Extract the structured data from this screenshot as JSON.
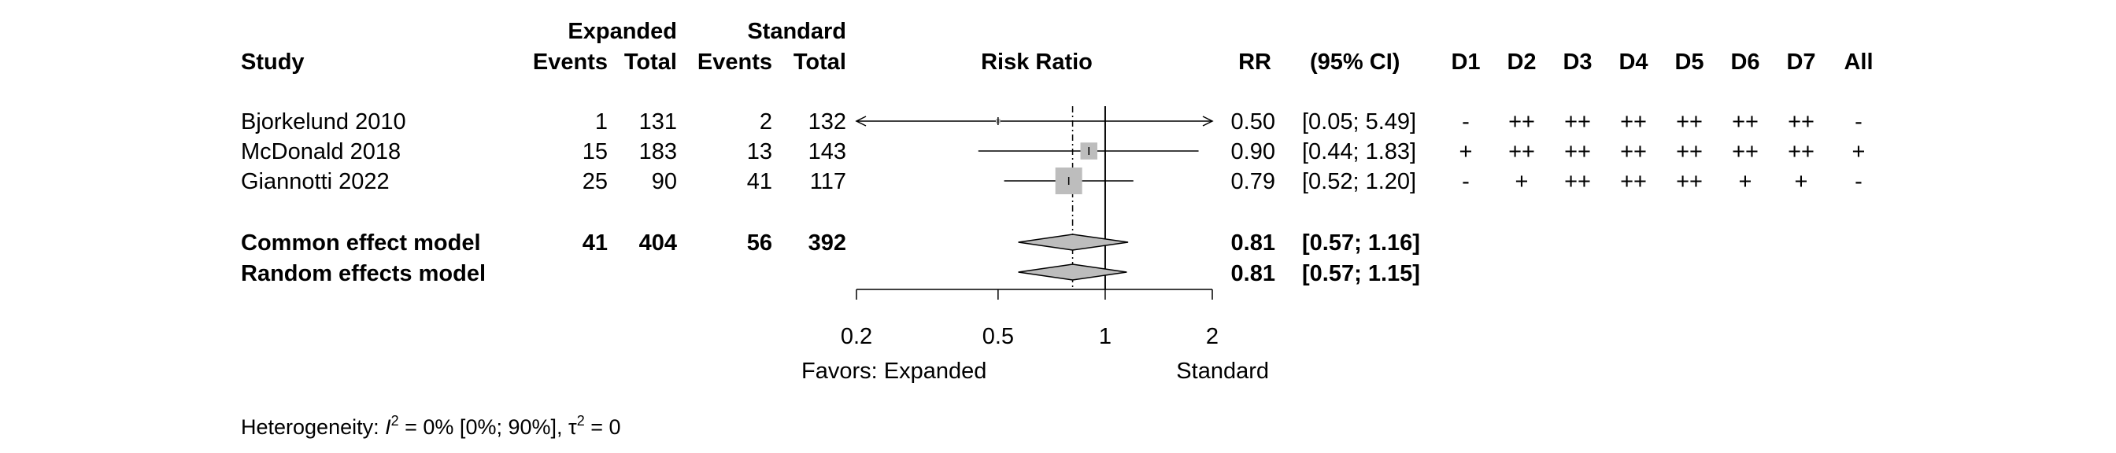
{
  "headers": {
    "study": "Study",
    "expanded_group": "Expanded",
    "standard_group": "Standard",
    "events": "Events",
    "total": "Total",
    "risk_ratio": "Risk Ratio",
    "rr": "RR",
    "ci": "(95% CI)",
    "domains": [
      "D1",
      "D2",
      "D3",
      "D4",
      "D5",
      "D6",
      "D7",
      "All"
    ]
  },
  "studies": [
    {
      "name": "Bjorkelund 2010",
      "exp_events": "1",
      "exp_total": "131",
      "std_events": "2",
      "std_total": "132",
      "rr_text": "0.50",
      "ci_text": "[0.05; 5.49]",
      "risk_of_bias": [
        "-",
        "++",
        "++",
        "++",
        "++",
        "++",
        "++",
        "-"
      ]
    },
    {
      "name": "McDonald 2018",
      "exp_events": "15",
      "exp_total": "183",
      "std_events": "13",
      "std_total": "143",
      "rr_text": "0.90",
      "ci_text": "[0.44; 1.83]",
      "risk_of_bias": [
        "+",
        "++",
        "++",
        "++",
        "++",
        "++",
        "++",
        "+"
      ]
    },
    {
      "name": "Giannotti 2022",
      "exp_events": "25",
      "exp_total": "90",
      "std_events": "41",
      "std_total": "117",
      "rr_text": "0.79",
      "ci_text": "[0.52; 1.20]",
      "risk_of_bias": [
        "-",
        "+",
        "++",
        "++",
        "++",
        "+",
        "+",
        "-"
      ]
    }
  ],
  "pooled": [
    {
      "name": "Common effect model",
      "exp_events": "41",
      "exp_total": "404",
      "std_events": "56",
      "std_total": "392",
      "rr_text": "0.81",
      "ci_text": "[0.57; 1.16]"
    },
    {
      "name": "Random effects model",
      "exp_events": "",
      "exp_total": "",
      "std_events": "",
      "std_total": "",
      "rr_text": "0.81",
      "ci_text": "[0.57; 1.15]"
    }
  ],
  "axis_labels": {
    "left": "Favors: Expanded",
    "right": "Standard"
  },
  "heterogeneity": {
    "prefix": "Heterogeneity: ",
    "i2_symbol": "I",
    "i2_sup": "2",
    "i2_value": " = 0% [0%; 90%], ",
    "tau_symbol": "τ",
    "tau_sup": "2",
    "tau_value": " = 0"
  },
  "colors": {
    "box": "#bdbdbd",
    "diamond": "#bdbdbd",
    "line": "#000000"
  },
  "chart_data": {
    "type": "forest",
    "scale": "log",
    "xlim": [
      0.2,
      2
    ],
    "x_ticks": [
      0.2,
      0.5,
      1,
      2
    ],
    "tick_labels": [
      "0.2",
      "0.5",
      "1",
      "2"
    ],
    "null_value": 1,
    "studies": [
      {
        "label": "Bjorkelund 2010",
        "rr": 0.5,
        "lower": 0.05,
        "upper": 5.49,
        "weight": 2
      },
      {
        "label": "McDonald 2018",
        "rr": 0.9,
        "lower": 0.44,
        "upper": 1.83,
        "weight": 28
      },
      {
        "label": "Giannotti 2022",
        "rr": 0.79,
        "lower": 0.52,
        "upper": 1.2,
        "weight": 70
      }
    ],
    "pooled": [
      {
        "label": "Common effect model",
        "rr": 0.81,
        "lower": 0.57,
        "upper": 1.16
      },
      {
        "label": "Random effects model",
        "rr": 0.81,
        "lower": 0.57,
        "upper": 1.15
      }
    ],
    "reference_line_at": 0.81
  }
}
